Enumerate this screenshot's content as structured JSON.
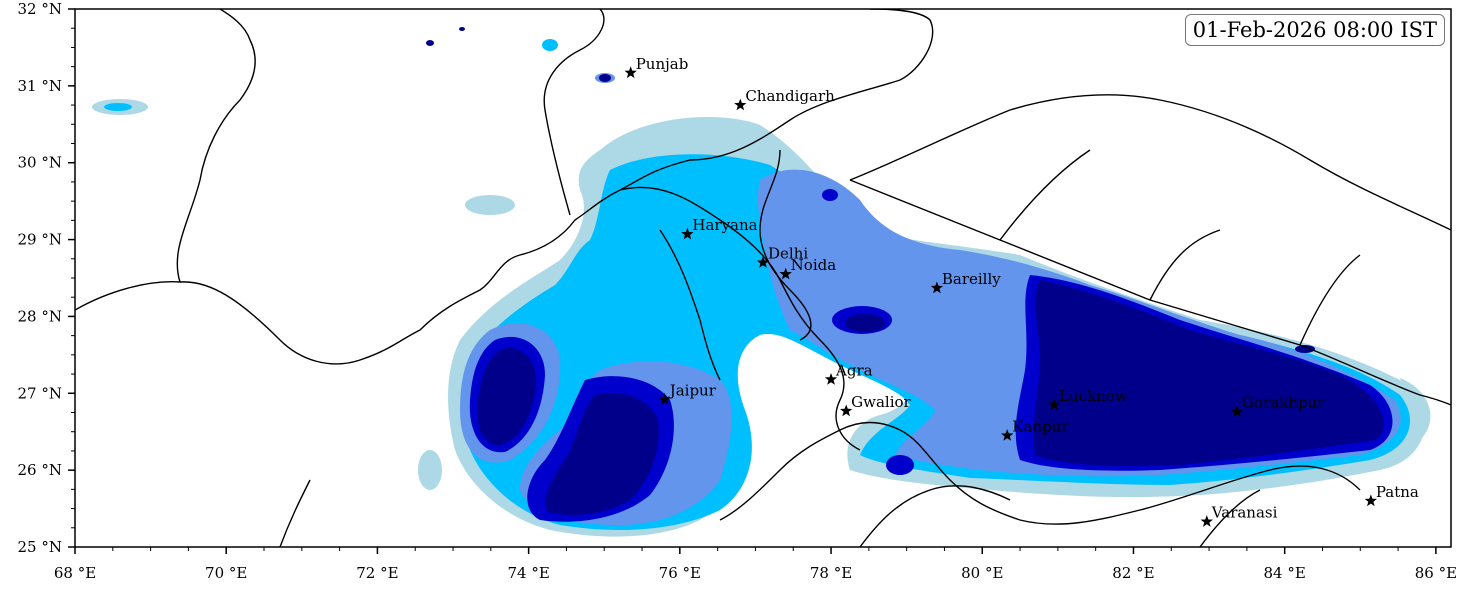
{
  "timestamp": "01-Feb-2026 08:00 IST",
  "lat_range": [
    25,
    32
  ],
  "lon_range": [
    68,
    86.2
  ],
  "x_ticks": [
    "68 °E",
    "70 °E",
    "72 °E",
    "74 °E",
    "76 °E",
    "78 °E",
    "80 °E",
    "82 °E",
    "84 °E",
    "86 °E"
  ],
  "y_ticks": [
    "32 °N",
    "31 °N",
    "30 °N",
    "29 °N",
    "28 °N",
    "27 °N",
    "26 °N",
    "25 °N"
  ],
  "colors": {
    "level1": "#add8e6",
    "level2": "#00bfff",
    "level3": "#6495ed",
    "level4": "#0000cd",
    "level5": "#00008b"
  },
  "cities": [
    {
      "name": "Punjab",
      "lon": 75.35,
      "lat": 31.17
    },
    {
      "name": "Chandigarh",
      "lon": 76.8,
      "lat": 30.75
    },
    {
      "name": "Haryana",
      "lon": 76.1,
      "lat": 29.07
    },
    {
      "name": "Delhi",
      "lon": 77.1,
      "lat": 28.7
    },
    {
      "name": "Noida",
      "lon": 77.4,
      "lat": 28.55
    },
    {
      "name": "Bareilly",
      "lon": 79.4,
      "lat": 28.37
    },
    {
      "name": "Agra",
      "lon": 78.0,
      "lat": 27.18
    },
    {
      "name": "Jaipur",
      "lon": 75.8,
      "lat": 26.92
    },
    {
      "name": "Gwalior",
      "lon": 78.2,
      "lat": 26.77
    },
    {
      "name": "Lucknow",
      "lon": 80.95,
      "lat": 26.85
    },
    {
      "name": "Kanpur",
      "lon": 80.33,
      "lat": 26.45
    },
    {
      "name": "Gorakhpur",
      "lon": 83.37,
      "lat": 26.76
    },
    {
      "name": "Varanasi",
      "lon": 82.97,
      "lat": 25.33
    },
    {
      "name": "Patna",
      "lon": 85.14,
      "lat": 25.6
    }
  ]
}
